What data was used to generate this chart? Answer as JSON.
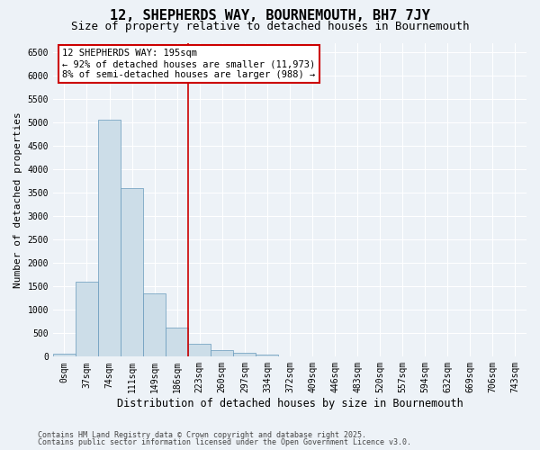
{
  "title": "12, SHEPHERDS WAY, BOURNEMOUTH, BH7 7JY",
  "subtitle": "Size of property relative to detached houses in Bournemouth",
  "xlabel": "Distribution of detached houses by size in Bournemouth",
  "ylabel": "Number of detached properties",
  "bar_color": "#ccdde8",
  "bar_edge_color": "#6699bb",
  "categories": [
    "0sqm",
    "37sqm",
    "74sqm",
    "111sqm",
    "149sqm",
    "186sqm",
    "223sqm",
    "260sqm",
    "297sqm",
    "334sqm",
    "372sqm",
    "409sqm",
    "446sqm",
    "483sqm",
    "520sqm",
    "557sqm",
    "594sqm",
    "632sqm",
    "669sqm",
    "706sqm",
    "743sqm"
  ],
  "values": [
    60,
    1600,
    5050,
    3600,
    1350,
    620,
    270,
    145,
    90,
    40,
    10,
    4,
    2,
    1,
    0,
    0,
    0,
    0,
    0,
    0,
    0
  ],
  "ylim": [
    0,
    6700
  ],
  "yticks": [
    0,
    500,
    1000,
    1500,
    2000,
    2500,
    3000,
    3500,
    4000,
    4500,
    5000,
    5500,
    6000,
    6500
  ],
  "property_line_color": "#cc0000",
  "annotation_text": "12 SHEPHERDS WAY: 195sqm\n← 92% of detached houses are smaller (11,973)\n8% of semi-detached houses are larger (988) →",
  "annotation_box_color": "#ffffff",
  "annotation_box_edge_color": "#cc0000",
  "footnote1": "Contains HM Land Registry data © Crown copyright and database right 2025.",
  "footnote2": "Contains public sector information licensed under the Open Government Licence v3.0.",
  "background_color": "#edf2f7",
  "grid_color": "#ffffff",
  "title_fontsize": 11,
  "subtitle_fontsize": 9,
  "tick_fontsize": 7,
  "ylabel_fontsize": 8,
  "xlabel_fontsize": 8.5,
  "footnote_fontsize": 6
}
